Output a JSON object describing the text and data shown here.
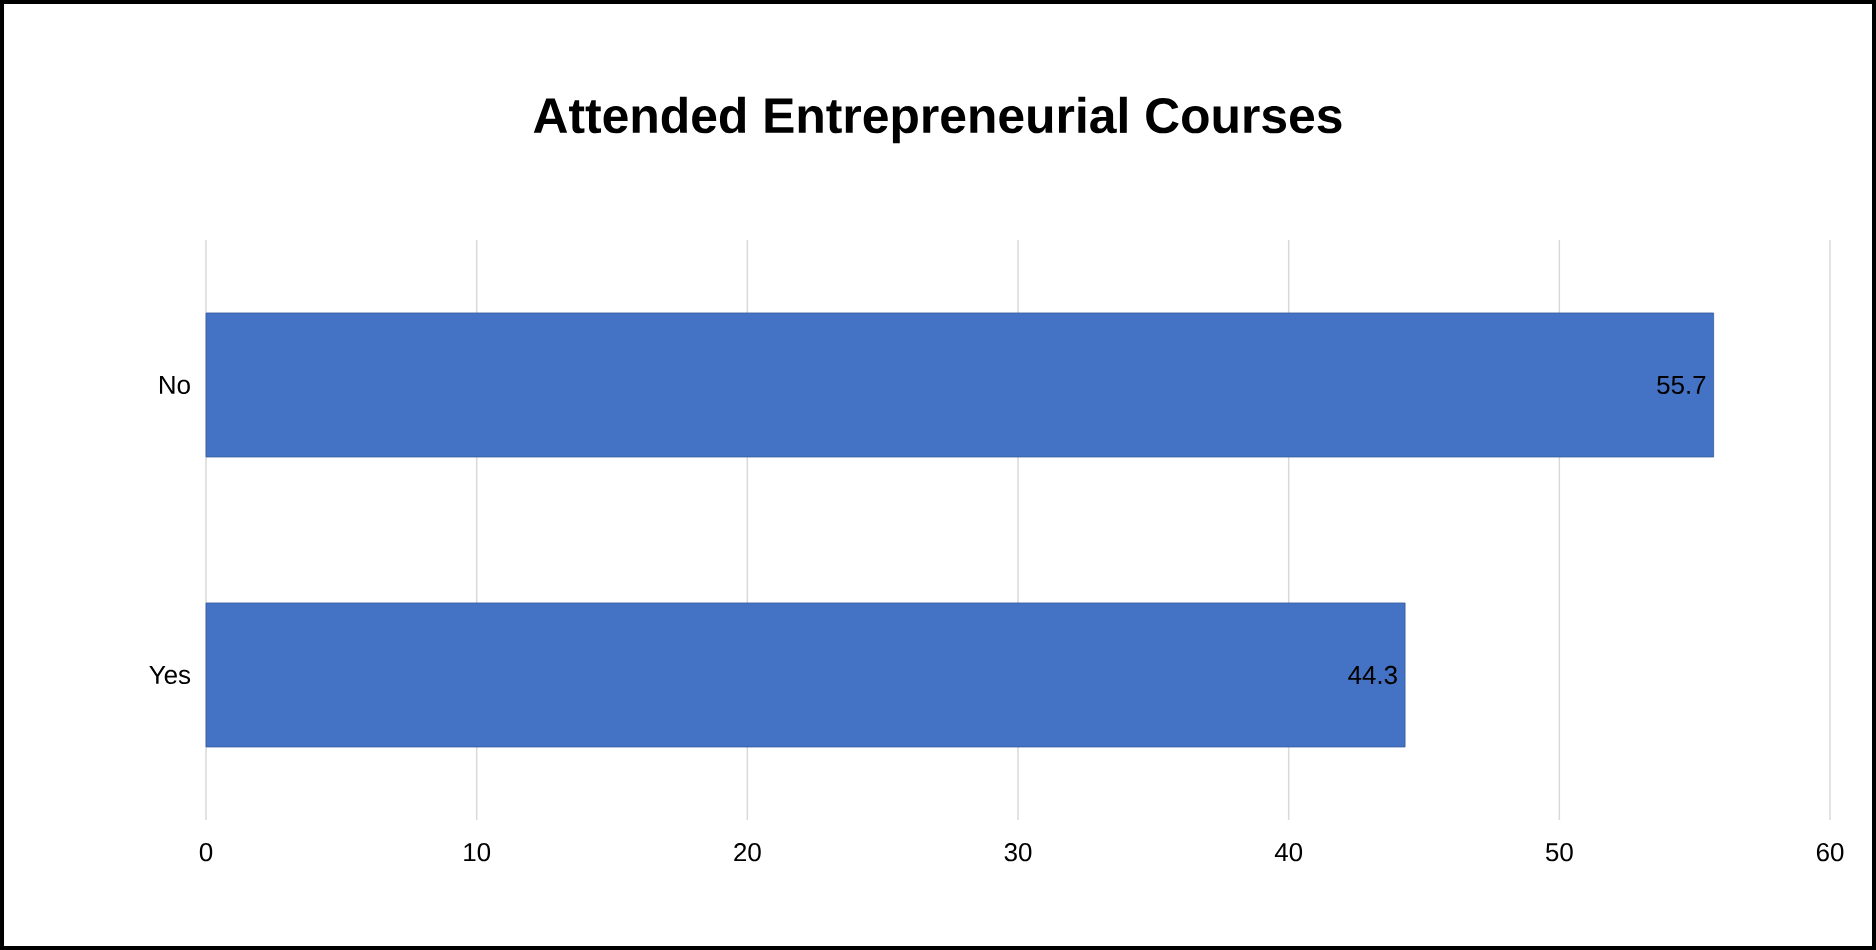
{
  "chart_data": {
    "type": "bar",
    "orientation": "horizontal",
    "title": "Attended Entrepreneurial Courses",
    "categories": [
      "No",
      "Yes"
    ],
    "values": [
      55.7,
      44.3
    ],
    "color": "#4472c4",
    "xlim": [
      0,
      60
    ],
    "xticks": [
      0,
      10,
      20,
      30,
      40,
      50,
      60
    ],
    "grid": "x",
    "data_labels": true
  }
}
